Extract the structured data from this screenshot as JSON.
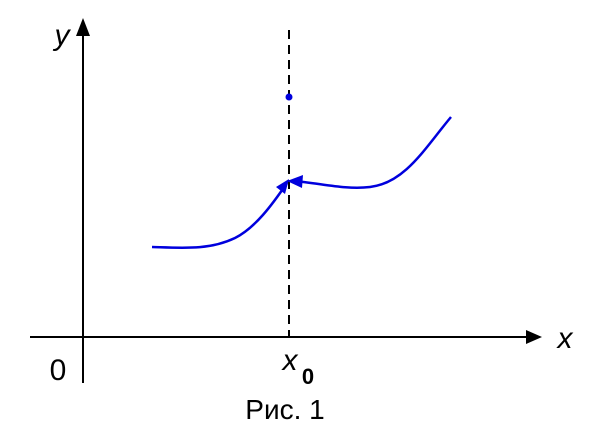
{
  "axes": {
    "y_label": "y",
    "x_label": "x",
    "origin": "0"
  },
  "point": {
    "label": "x",
    "subscript": "0"
  },
  "caption": "Рис. 1"
}
